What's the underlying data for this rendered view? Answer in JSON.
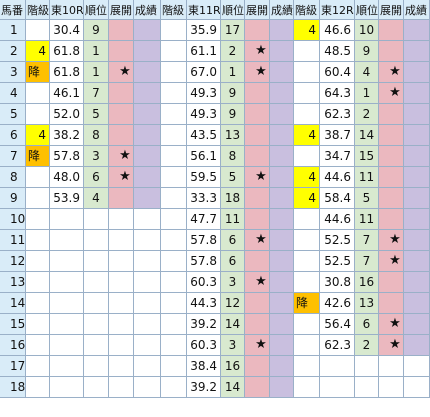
{
  "colors": {
    "header_bg": "#d9ecf8",
    "row_num_bg": "#d9ecf8",
    "rank_bg": "#d8e9cf",
    "tenkai_bg": "#ebb8bf",
    "seiseki_bg": "#c9bfdf",
    "flag4_bg": "#ffff00",
    "flagko_bg": "#ffc000",
    "grid": "#9ab0c8"
  },
  "header": [
    "馬番",
    "階級",
    "東10R",
    "順位",
    "展開",
    "成績",
    "階級",
    "東11R",
    "順位",
    "展開",
    "成績",
    "階級",
    "東12R",
    "順位",
    "展開",
    "成績"
  ],
  "rows": [
    {
      "no": "1",
      "r10": {
        "flag": "",
        "val": "30.4",
        "rank": "9",
        "star": ""
      },
      "r11": {
        "flag": "",
        "val": "35.9",
        "rank": "17",
        "star": ""
      },
      "r12": {
        "flag": "4",
        "val": "46.6",
        "rank": "10",
        "star": ""
      }
    },
    {
      "no": "2",
      "r10": {
        "flag": "4",
        "val": "61.8",
        "rank": "1",
        "star": ""
      },
      "r11": {
        "flag": "",
        "val": "61.1",
        "rank": "2",
        "star": "★"
      },
      "r12": {
        "flag": "",
        "val": "48.5",
        "rank": "9",
        "star": ""
      }
    },
    {
      "no": "3",
      "r10": {
        "flag": "降",
        "val": "61.8",
        "rank": "1",
        "star": "★"
      },
      "r11": {
        "flag": "",
        "val": "67.0",
        "rank": "1",
        "star": "★"
      },
      "r12": {
        "flag": "",
        "val": "60.4",
        "rank": "4",
        "star": "★"
      }
    },
    {
      "no": "4",
      "r10": {
        "flag": "",
        "val": "46.1",
        "rank": "7",
        "star": ""
      },
      "r11": {
        "flag": "",
        "val": "49.3",
        "rank": "9",
        "star": ""
      },
      "r12": {
        "flag": "",
        "val": "64.3",
        "rank": "1",
        "star": "★"
      }
    },
    {
      "no": "5",
      "r10": {
        "flag": "",
        "val": "52.0",
        "rank": "5",
        "star": ""
      },
      "r11": {
        "flag": "",
        "val": "49.3",
        "rank": "9",
        "star": ""
      },
      "r12": {
        "flag": "",
        "val": "62.3",
        "rank": "2",
        "star": ""
      }
    },
    {
      "no": "6",
      "r10": {
        "flag": "4",
        "val": "38.2",
        "rank": "8",
        "star": ""
      },
      "r11": {
        "flag": "",
        "val": "43.5",
        "rank": "13",
        "star": ""
      },
      "r12": {
        "flag": "4",
        "val": "38.7",
        "rank": "14",
        "star": ""
      }
    },
    {
      "no": "7",
      "r10": {
        "flag": "降",
        "val": "57.8",
        "rank": "3",
        "star": "★"
      },
      "r11": {
        "flag": "",
        "val": "56.1",
        "rank": "8",
        "star": ""
      },
      "r12": {
        "flag": "",
        "val": "34.7",
        "rank": "15",
        "star": ""
      }
    },
    {
      "no": "8",
      "r10": {
        "flag": "",
        "val": "48.0",
        "rank": "6",
        "star": "★"
      },
      "r11": {
        "flag": "",
        "val": "59.5",
        "rank": "5",
        "star": "★"
      },
      "r12": {
        "flag": "4",
        "val": "44.6",
        "rank": "11",
        "star": ""
      }
    },
    {
      "no": "9",
      "r10": {
        "flag": "",
        "val": "53.9",
        "rank": "4",
        "star": ""
      },
      "r11": {
        "flag": "",
        "val": "33.3",
        "rank": "18",
        "star": ""
      },
      "r12": {
        "flag": "4",
        "val": "58.4",
        "rank": "5",
        "star": ""
      }
    },
    {
      "no": "10",
      "r10": null,
      "r11": {
        "flag": "",
        "val": "47.7",
        "rank": "11",
        "star": ""
      },
      "r12": {
        "flag": "",
        "val": "44.6",
        "rank": "11",
        "star": ""
      }
    },
    {
      "no": "11",
      "r10": null,
      "r11": {
        "flag": "",
        "val": "57.8",
        "rank": "6",
        "star": "★"
      },
      "r12": {
        "flag": "",
        "val": "52.5",
        "rank": "7",
        "star": "★"
      }
    },
    {
      "no": "12",
      "r10": null,
      "r11": {
        "flag": "",
        "val": "57.8",
        "rank": "6",
        "star": ""
      },
      "r12": {
        "flag": "",
        "val": "52.5",
        "rank": "7",
        "star": "★"
      }
    },
    {
      "no": "13",
      "r10": null,
      "r11": {
        "flag": "",
        "val": "60.3",
        "rank": "3",
        "star": "★"
      },
      "r12": {
        "flag": "",
        "val": "30.8",
        "rank": "16",
        "star": ""
      }
    },
    {
      "no": "14",
      "r10": null,
      "r11": {
        "flag": "",
        "val": "44.3",
        "rank": "12",
        "star": ""
      },
      "r12": {
        "flag": "降",
        "val": "42.6",
        "rank": "13",
        "star": ""
      }
    },
    {
      "no": "15",
      "r10": null,
      "r11": {
        "flag": "",
        "val": "39.2",
        "rank": "14",
        "star": ""
      },
      "r12": {
        "flag": "",
        "val": "56.4",
        "rank": "6",
        "star": "★"
      }
    },
    {
      "no": "16",
      "r10": null,
      "r11": {
        "flag": "",
        "val": "60.3",
        "rank": "3",
        "star": "★"
      },
      "r12": {
        "flag": "",
        "val": "62.3",
        "rank": "2",
        "star": "★"
      }
    },
    {
      "no": "17",
      "r10": null,
      "r11": {
        "flag": "",
        "val": "38.4",
        "rank": "16",
        "star": ""
      },
      "r12": null
    },
    {
      "no": "18",
      "r10": null,
      "r11": {
        "flag": "",
        "val": "39.2",
        "rank": "14",
        "star": ""
      },
      "r12": null
    }
  ]
}
